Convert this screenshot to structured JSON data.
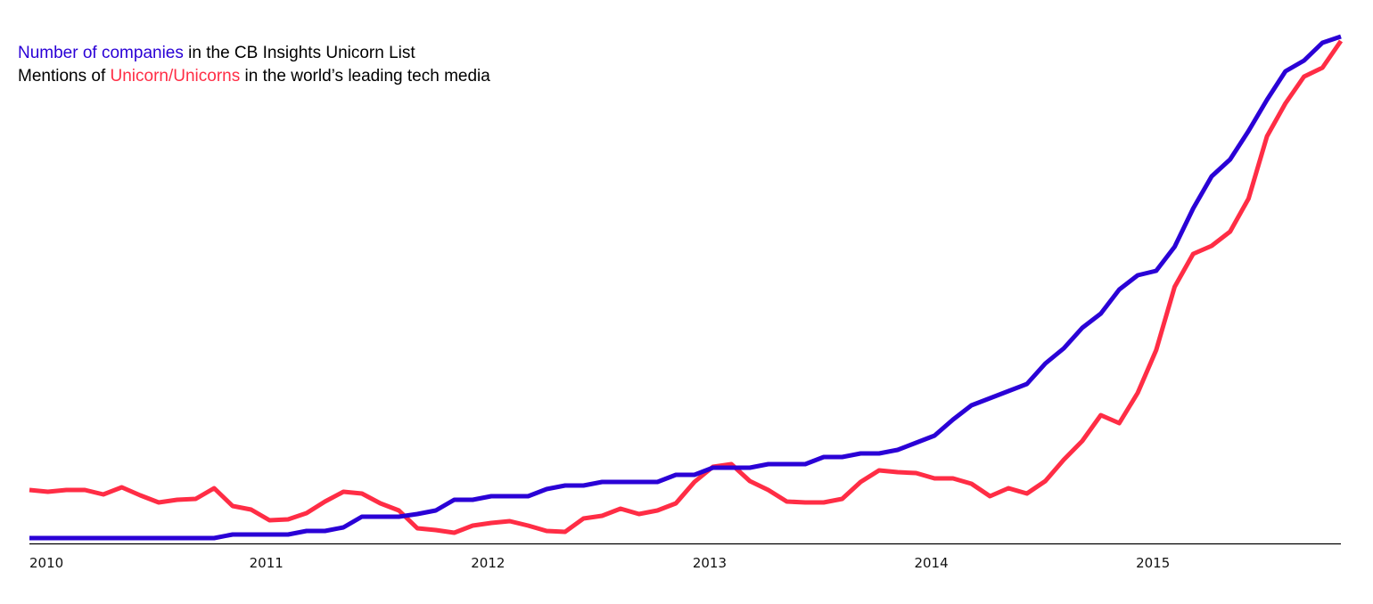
{
  "chart_data": {
    "type": "line",
    "title": "",
    "xlabel": "",
    "ylabel": "",
    "x_start": "2010-01",
    "x_frequency": "monthly",
    "ylim": [
      0,
      580
    ],
    "grid": false,
    "legend_placement": "top-left",
    "legend": {
      "line1": {
        "highlight": "Number of companies",
        "rest": " in the CB Insights Unicorn List"
      },
      "line2": {
        "prefix": "Mentions of ",
        "highlight": "Unicorn/Unicorns",
        "rest": " in the world’s leading tech media"
      }
    },
    "ticks": [
      {
        "label": "2010",
        "index": 0
      },
      {
        "label": "2011",
        "index": 12
      },
      {
        "label": "2012",
        "index": 24
      },
      {
        "label": "2013",
        "index": 36
      },
      {
        "label": "2014",
        "index": 48
      },
      {
        "label": "2015",
        "index": 60
      }
    ],
    "series": [
      {
        "name": "Number of companies in the CB Insights Unicorn List",
        "color": "#2a00d6",
        "values": [
          6,
          6,
          6,
          6,
          6,
          6,
          6,
          6,
          6,
          6,
          6,
          10,
          10,
          10,
          10,
          14,
          14,
          18,
          30,
          30,
          30,
          33,
          37,
          49,
          49,
          53,
          53,
          53,
          61,
          65,
          65,
          69,
          69,
          69,
          69,
          77,
          77,
          85,
          85,
          85,
          89,
          89,
          89,
          97,
          97,
          101,
          101,
          105,
          113,
          121,
          139,
          155,
          163,
          171,
          179,
          202,
          219,
          242,
          258,
          285,
          301,
          306,
          333,
          376,
          412,
          431,
          463,
          498,
          530,
          542,
          562,
          569
        ]
      },
      {
        "name": "Mentions of Unicorn/Unicorns in the world’s leading tech media",
        "color": "#ff2d45",
        "values": [
          60,
          58,
          60,
          60,
          55,
          63,
          54,
          46,
          49,
          50,
          62,
          42,
          38,
          26,
          27,
          34,
          47,
          58,
          56,
          45,
          37,
          17,
          15,
          12,
          20,
          23,
          25,
          20,
          14,
          13,
          28,
          31,
          39,
          33,
          37,
          45,
          69,
          86,
          89,
          70,
          60,
          47,
          46,
          46,
          50,
          69,
          82,
          80,
          79,
          73,
          73,
          67,
          53,
          62,
          56,
          70,
          94,
          115,
          144,
          135,
          169,
          217,
          288,
          325,
          334,
          350,
          387,
          457,
          494,
          524,
          534,
          564
        ]
      }
    ]
  }
}
